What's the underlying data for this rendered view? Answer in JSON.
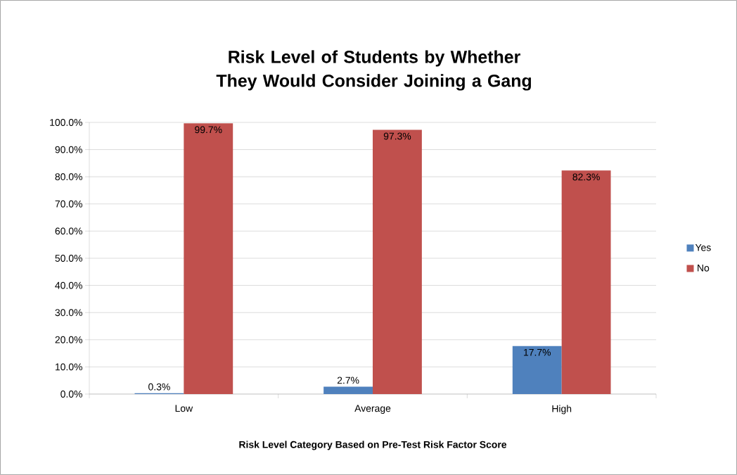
{
  "chart_data": {
    "type": "bar",
    "title": "Risk Level of Students by Whether They Would Consider Joining a Gang",
    "xlabel": "Risk Level Category Based on Pre-Test Risk Factor Score",
    "categories": [
      "Low",
      "Average",
      "High"
    ],
    "series": [
      {
        "name": "Yes",
        "color": "#4f81bd",
        "values": [
          0.3,
          2.7,
          17.7
        ],
        "value_labels": [
          "0.3%",
          "2.7%",
          "17.7%"
        ]
      },
      {
        "name": "No",
        "color": "#c0504d",
        "values": [
          99.7,
          97.3,
          82.3
        ],
        "value_labels": [
          "99.7%",
          "97.3%",
          "82.3%"
        ]
      }
    ],
    "ylim": [
      0,
      100
    ],
    "yticks": [
      {
        "value": 0,
        "label": "0.0%"
      },
      {
        "value": 10,
        "label": "10.0%"
      },
      {
        "value": 20,
        "label": "20.0%"
      },
      {
        "value": 30,
        "label": "30.0%"
      },
      {
        "value": 40,
        "label": "40.0%"
      },
      {
        "value": 50,
        "label": "50.0%"
      },
      {
        "value": 60,
        "label": "60.0%"
      },
      {
        "value": 70,
        "label": "70.0%"
      },
      {
        "value": 80,
        "label": "80.0%"
      },
      {
        "value": 90,
        "label": "90.0%"
      },
      {
        "value": 100,
        "label": "100.0%"
      }
    ],
    "grid": "y",
    "legend": "right"
  }
}
